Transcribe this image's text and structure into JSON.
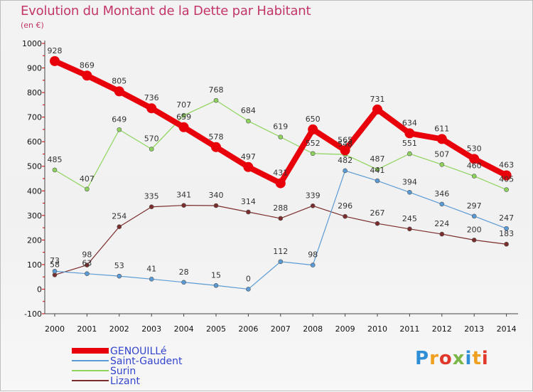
{
  "title": "Evolution du Montant de la Dette par Habitant",
  "subtitle": "(en €)",
  "brand": {
    "letters": [
      "P",
      "r",
      "o",
      "x",
      "i",
      "t",
      "i"
    ],
    "colors": [
      "#2f8fd6",
      "#f0a020",
      "#e0382b",
      "#7ab648",
      "#2f8fd6",
      "#f0a020",
      "#e0382b"
    ]
  },
  "chart_data": {
    "type": "line",
    "x": [
      "2000",
      "2001",
      "2002",
      "2003",
      "2004",
      "2005",
      "2006",
      "2007",
      "2008",
      "2009",
      "2010",
      "2011",
      "2012",
      "2013",
      "2014"
    ],
    "y_ticks": [
      "1000",
      "900",
      "800",
      "700",
      "600",
      "500",
      "400",
      "300",
      "200",
      "100",
      "0",
      "-100"
    ],
    "ylim": [
      -100,
      1000
    ],
    "grid": false,
    "legend_position": "bottom-left",
    "series": [
      {
        "name": "GENOUILLé",
        "color": "#e8000b",
        "values": [
          928,
          869,
          805,
          736,
          659,
          578,
          497,
          431,
          650,
          565,
          731,
          634,
          611,
          530,
          463
        ]
      },
      {
        "name": "Saint-Gaudent",
        "color": "#5b9bd5",
        "values": [
          73,
          63,
          53,
          41,
          28,
          15,
          0,
          112,
          98,
          482,
          441,
          394,
          346,
          297,
          247
        ]
      },
      {
        "name": "Surin",
        "color": "#8ed45c",
        "values": [
          485,
          407,
          649,
          570,
          707,
          768,
          684,
          619,
          552,
          548,
          487,
          551,
          507,
          460,
          405
        ]
      },
      {
        "name": "Lizant",
        "color": "#7b2c2c",
        "values": [
          58,
          98,
          254,
          335,
          341,
          340,
          314,
          288,
          339,
          296,
          267,
          245,
          224,
          200,
          183
        ]
      }
    ]
  }
}
